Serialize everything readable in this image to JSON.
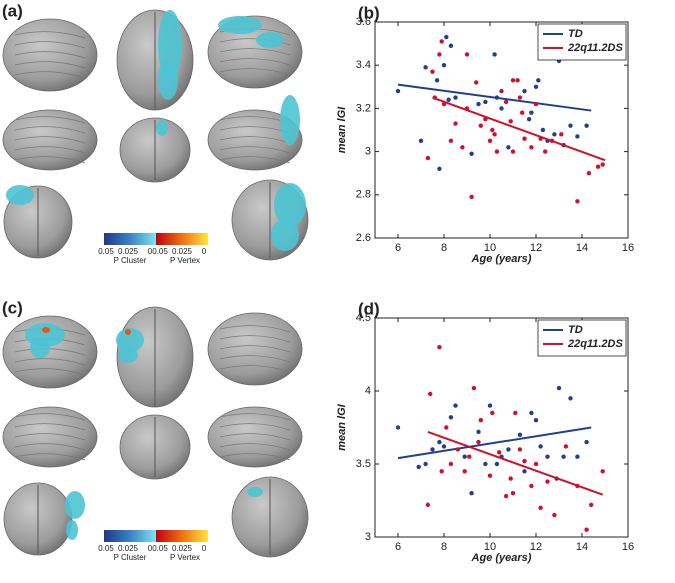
{
  "figure_panels": [
    {
      "label": "(a)",
      "colorbar": {
        "cluster_ticks": [
          0.05,
          0.025,
          0
        ],
        "cluster_label": "P Cluster",
        "vertex_ticks": [
          0.05,
          0.025,
          0
        ],
        "vertex_label": "P Vertex"
      }
    },
    {
      "label": "(c)",
      "colorbar": {
        "cluster_ticks": [
          0.05,
          0.025,
          0
        ],
        "cluster_label": "P Cluster",
        "vertex_ticks": [
          0.05,
          0.025,
          0
        ],
        "vertex_label": "P Vertex"
      }
    }
  ],
  "chart_data": [
    {
      "type": "scatter",
      "panel_label": "(b)",
      "xlabel": "Age (years)",
      "ylabel": "mean lGI",
      "xlim": [
        5,
        16
      ],
      "xticks": [
        6,
        8,
        10,
        12,
        14,
        16
      ],
      "ylim": [
        2.6,
        3.6
      ],
      "yticks": [
        2.6,
        2.8,
        3,
        3.2,
        3.4,
        3.6
      ],
      "legend": "upper right",
      "series": [
        {
          "name": "TD",
          "color": "#1f3f8f",
          "x": [
            6.0,
            7.0,
            7.2,
            7.7,
            8.0,
            8.1,
            8.3,
            7.8,
            8.2,
            8.5,
            9.2,
            9.5,
            9.8,
            10.2,
            10.3,
            10.5,
            10.8,
            11.5,
            11.8,
            12.0,
            12.1,
            12.3,
            12.5,
            13.0,
            13.2,
            13.5,
            13.8,
            14.2,
            11.7,
            12.8
          ],
          "values": [
            3.28,
            3.05,
            3.39,
            3.33,
            3.4,
            3.53,
            3.49,
            2.92,
            3.24,
            3.25,
            2.99,
            3.22,
            3.23,
            3.45,
            3.25,
            3.2,
            3.02,
            3.28,
            3.18,
            3.3,
            3.33,
            3.1,
            3.05,
            3.42,
            3.03,
            3.12,
            3.07,
            3.12,
            3.15,
            3.08
          ],
          "fit_x": [
            6,
            14.4
          ],
          "fit_values": [
            3.31,
            3.19
          ]
        },
        {
          "name": "22q11.2DS",
          "color": "#d0102a",
          "x": [
            7.3,
            7.5,
            7.6,
            7.8,
            7.9,
            8.0,
            8.3,
            8.5,
            8.8,
            9.0,
            9.0,
            9.2,
            9.4,
            9.6,
            9.8,
            10.0,
            10.1,
            10.3,
            10.5,
            10.7,
            10.9,
            11.0,
            11.2,
            11.3,
            11.4,
            11.5,
            11.8,
            12.0,
            12.2,
            12.4,
            12.7,
            13.1,
            13.8,
            14.3,
            14.7,
            14.9,
            10.2,
            11.0
          ],
          "values": [
            2.97,
            3.37,
            3.25,
            3.45,
            3.51,
            3.22,
            3.05,
            3.13,
            3.02,
            3.45,
            3.2,
            2.79,
            3.32,
            3.12,
            3.15,
            3.05,
            3.1,
            3.0,
            3.28,
            3.23,
            3.14,
            3.33,
            3.33,
            3.25,
            3.18,
            3.06,
            3.02,
            3.22,
            3.06,
            3.0,
            3.05,
            3.08,
            2.77,
            2.9,
            2.93,
            2.94,
            3.08,
            3.0
          ],
          "fit_x": [
            7.5,
            15
          ],
          "fit_values": [
            3.25,
            2.96
          ]
        }
      ]
    },
    {
      "type": "scatter",
      "panel_label": "(d)",
      "xlabel": "Age (years)",
      "ylabel": "mean lGI",
      "xlim": [
        5,
        16
      ],
      "xticks": [
        6,
        8,
        10,
        12,
        14,
        16
      ],
      "ylim": [
        3,
        4.5
      ],
      "yticks": [
        3,
        3.5,
        4,
        4.5
      ],
      "legend": "upper right",
      "series": [
        {
          "name": "TD",
          "color": "#1f3f8f",
          "x": [
            6.0,
            6.9,
            7.2,
            7.5,
            7.8,
            8.0,
            8.3,
            8.5,
            8.9,
            9.2,
            9.5,
            9.8,
            10.0,
            10.3,
            10.5,
            10.8,
            11.3,
            11.8,
            12.0,
            12.2,
            12.5,
            13.0,
            13.2,
            13.5,
            13.8,
            14.2,
            11.5,
            12.9
          ],
          "values": [
            3.75,
            3.48,
            3.5,
            3.6,
            3.65,
            3.62,
            3.82,
            3.9,
            3.55,
            3.3,
            3.72,
            3.5,
            3.9,
            3.5,
            3.55,
            3.6,
            3.7,
            3.85,
            3.8,
            3.62,
            3.55,
            4.02,
            3.55,
            3.95,
            3.55,
            3.65,
            3.45,
            3.4
          ],
          "fit_x": [
            6,
            14.4
          ],
          "fit_values": [
            3.54,
            3.75
          ]
        },
        {
          "name": "22q11.2DS",
          "color": "#d0102a",
          "x": [
            7.3,
            7.4,
            7.8,
            7.9,
            8.1,
            8.3,
            8.6,
            8.9,
            9.1,
            9.3,
            9.5,
            9.6,
            10.0,
            10.1,
            10.4,
            10.7,
            10.9,
            11.1,
            11.3,
            11.5,
            11.8,
            12.0,
            12.2,
            12.5,
            12.8,
            13.3,
            13.8,
            14.2,
            14.4,
            14.9,
            11.0
          ],
          "values": [
            3.22,
            3.98,
            4.3,
            3.45,
            3.75,
            3.5,
            3.6,
            3.45,
            3.55,
            4.02,
            3.65,
            3.8,
            3.42,
            3.85,
            3.58,
            3.28,
            3.4,
            3.85,
            3.6,
            3.52,
            3.35,
            3.5,
            3.2,
            3.38,
            3.15,
            3.62,
            3.35,
            3.05,
            3.22,
            3.45,
            3.3
          ],
          "fit_x": [
            7.3,
            14.9
          ],
          "fit_values": [
            3.72,
            3.29
          ]
        }
      ]
    }
  ]
}
